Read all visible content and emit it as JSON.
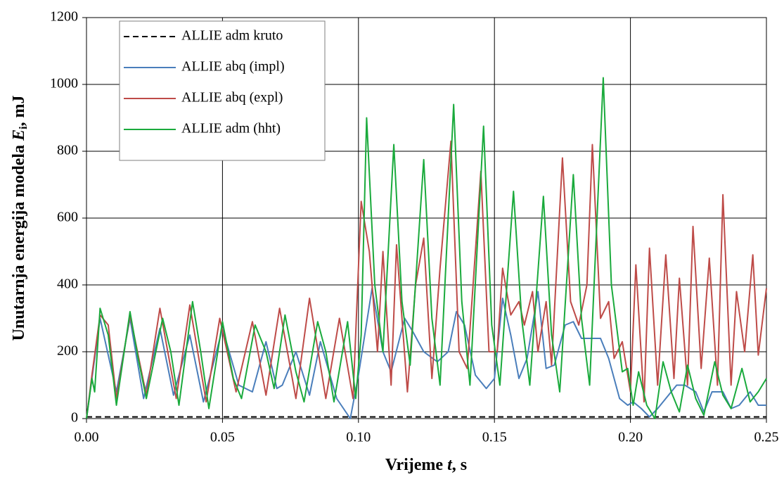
{
  "chart_data": {
    "type": "line",
    "xlabel_parts": [
      "Vrijeme ",
      "t",
      ", s"
    ],
    "ylabel_parts": [
      "Unutarnja energija modela ",
      "E",
      "i",
      ", mJ"
    ],
    "xlim": [
      0,
      0.25
    ],
    "xticks": [
      {
        "value": 0,
        "label": "0.00"
      },
      {
        "value": 0.05,
        "label": "0.05"
      },
      {
        "value": 0.1,
        "label": "0.10"
      },
      {
        "value": 0.15,
        "label": "0.15"
      },
      {
        "value": 0.2,
        "label": "0.20"
      },
      {
        "value": 0.25,
        "label": "0.25"
      }
    ],
    "ylim": [
      0,
      1200
    ],
    "yticks": [
      0,
      200,
      400,
      600,
      800,
      1000,
      1200
    ],
    "grid": true,
    "legend": "upper left",
    "series": [
      {
        "name": "ALLIE adm kruto",
        "color": "#000000",
        "dash": true,
        "x": [
          0,
          0.25
        ],
        "values": [
          5,
          5
        ]
      },
      {
        "name": "ALLIE abq (impl)",
        "color": "#4a7ebb",
        "dash": false,
        "x": [
          0,
          0.005,
          0.011,
          0.016,
          0.021,
          0.027,
          0.032,
          0.038,
          0.043,
          0.05,
          0.056,
          0.061,
          0.066,
          0.07,
          0.072,
          0.077,
          0.082,
          0.086,
          0.092,
          0.097,
          0.1,
          0.105,
          0.109,
          0.112,
          0.117,
          0.12,
          0.124,
          0.129,
          0.133,
          0.136,
          0.139,
          0.143,
          0.147,
          0.15,
          0.153,
          0.156,
          0.159,
          0.162,
          0.166,
          0.169,
          0.172,
          0.176,
          0.179,
          0.182,
          0.186,
          0.189,
          0.192,
          0.196,
          0.199,
          0.201,
          0.204,
          0.207,
          0.21,
          0.214,
          0.217,
          0.22,
          0.224,
          0.227,
          0.23,
          0.234,
          0.237,
          0.24,
          0.244,
          0.247,
          0.25
        ],
        "values": [
          0,
          300,
          80,
          300,
          60,
          270,
          70,
          250,
          50,
          270,
          100,
          80,
          230,
          90,
          100,
          200,
          70,
          230,
          60,
          0,
          130,
          390,
          200,
          140,
          300,
          260,
          200,
          170,
          200,
          320,
          280,
          130,
          90,
          120,
          360,
          250,
          120,
          180,
          380,
          150,
          160,
          280,
          290,
          240,
          240,
          240,
          180,
          60,
          40,
          50,
          30,
          5,
          30,
          70,
          100,
          100,
          80,
          20,
          80,
          80,
          30,
          40,
          80,
          40,
          40
        ]
      },
      {
        "name": "ALLIE abq (expl)",
        "color": "#be4b48",
        "dash": false,
        "x": [
          0,
          0.002,
          0.005,
          0.008,
          0.011,
          0.016,
          0.022,
          0.027,
          0.033,
          0.038,
          0.044,
          0.049,
          0.055,
          0.061,
          0.066,
          0.071,
          0.077,
          0.082,
          0.088,
          0.093,
          0.098,
          0.101,
          0.104,
          0.107,
          0.109,
          0.112,
          0.114,
          0.116,
          0.118,
          0.121,
          0.124,
          0.127,
          0.13,
          0.134,
          0.137,
          0.14,
          0.143,
          0.145,
          0.148,
          0.151,
          0.153,
          0.156,
          0.159,
          0.161,
          0.164,
          0.166,
          0.169,
          0.171,
          0.175,
          0.178,
          0.181,
          0.184,
          0.186,
          0.189,
          0.192,
          0.194,
          0.197,
          0.2,
          0.202,
          0.205,
          0.207,
          0.21,
          0.213,
          0.216,
          0.218,
          0.221,
          0.223,
          0.226,
          0.229,
          0.232,
          0.234,
          0.237,
          0.239,
          0.242,
          0.245,
          0.247,
          0.25
        ],
        "values": [
          0,
          130,
          310,
          280,
          60,
          310,
          70,
          330,
          60,
          340,
          50,
          300,
          80,
          290,
          70,
          330,
          60,
          360,
          60,
          300,
          60,
          650,
          500,
          200,
          500,
          100,
          520,
          300,
          80,
          400,
          540,
          120,
          450,
          830,
          200,
          150,
          500,
          740,
          200,
          200,
          450,
          310,
          350,
          280,
          380,
          200,
          350,
          160,
          780,
          350,
          280,
          400,
          820,
          300,
          350,
          180,
          230,
          80,
          460,
          50,
          510,
          100,
          490,
          120,
          420,
          100,
          575,
          150,
          480,
          100,
          670,
          100,
          380,
          200,
          490,
          190,
          390
        ]
      },
      {
        "name": "ALLIE adm (hht)",
        "color": "#1aaa3c",
        "dash": false,
        "x": [
          0,
          0.002,
          0.003,
          0.005,
          0.008,
          0.011,
          0.016,
          0.019,
          0.022,
          0.028,
          0.031,
          0.034,
          0.039,
          0.042,
          0.045,
          0.05,
          0.054,
          0.057,
          0.062,
          0.066,
          0.069,
          0.073,
          0.077,
          0.08,
          0.085,
          0.088,
          0.091,
          0.096,
          0.099,
          0.101,
          0.103,
          0.106,
          0.109,
          0.113,
          0.116,
          0.119,
          0.124,
          0.127,
          0.13,
          0.135,
          0.138,
          0.141,
          0.146,
          0.149,
          0.152,
          0.157,
          0.16,
          0.163,
          0.168,
          0.171,
          0.174,
          0.179,
          0.182,
          0.185,
          0.19,
          0.193,
          0.197,
          0.199,
          0.201,
          0.203,
          0.206,
          0.209,
          0.212,
          0.215,
          0.218,
          0.221,
          0.224,
          0.227,
          0.231,
          0.234,
          0.237,
          0.241,
          0.244,
          0.247,
          0.25
        ],
        "values": [
          0,
          120,
          80,
          330,
          250,
          40,
          320,
          180,
          60,
          300,
          200,
          40,
          350,
          200,
          30,
          290,
          120,
          60,
          280,
          200,
          90,
          310,
          140,
          50,
          290,
          200,
          50,
          290,
          60,
          250,
          900,
          400,
          200,
          820,
          350,
          160,
          775,
          300,
          100,
          940,
          350,
          100,
          875,
          280,
          100,
          680,
          300,
          100,
          665,
          250,
          80,
          730,
          300,
          100,
          1020,
          400,
          140,
          150,
          40,
          140,
          40,
          0,
          170,
          80,
          20,
          160,
          60,
          10,
          170,
          70,
          30,
          150,
          50,
          80,
          120
        ]
      }
    ]
  }
}
